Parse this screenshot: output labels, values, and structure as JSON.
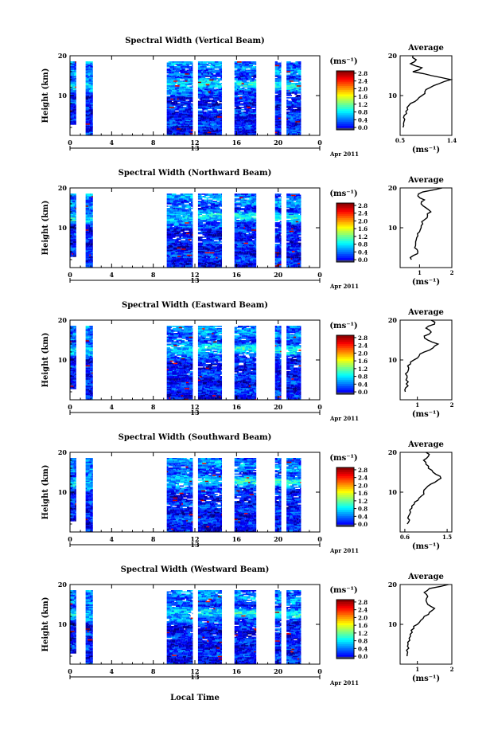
{
  "figure": {
    "panel_titles": [
      "Spectral Width (Vertical Beam)",
      "Spectral Width (Northward Beam)",
      "Spectral Width (Eastward Beam)",
      "Spectral Width (Southward Beam)",
      "Spectral Width (Westward Beam)"
    ],
    "ylabel": "Height (km)",
    "xlabel": "Local Time",
    "date_day": "13",
    "date_month": "Apr 2011",
    "colorbar_unit": "(ms⁻¹)",
    "profile_title": "Average",
    "profile_unit": "(ms⁻¹)"
  },
  "chart_data": [
    {
      "type": "heatmap",
      "title": "Spectral Width (Vertical Beam)",
      "ylabel": "Height (km)",
      "x_ticks": [
        "0",
        "4",
        "8",
        "12",
        "16",
        "20",
        "0"
      ],
      "y_ticks": [
        "10",
        "20"
      ],
      "xlim": [
        0,
        24
      ],
      "ylim": [
        0,
        20
      ],
      "colorbar": {
        "unit": "(ms⁻¹)",
        "ticks": [
          "0.0",
          "0.4",
          "0.8",
          "1.2",
          "1.6",
          "2.0",
          "2.4",
          "2.8"
        ],
        "range": [
          0,
          2.8
        ]
      },
      "data_blocks_hours": [
        [
          0.0,
          0.6
        ],
        [
          1.5,
          2.2
        ],
        [
          9.3,
          11.8
        ],
        [
          12.3,
          14.6
        ],
        [
          15.8,
          17.9
        ],
        [
          19.7,
          20.3
        ],
        [
          20.8,
          22.2
        ]
      ],
      "profile": {
        "title": "Average",
        "xlabel": "(ms⁻¹)",
        "x_ticks": [
          "0.5",
          "1.4"
        ],
        "y_ticks": [
          "10",
          "20"
        ],
        "xlim": [
          0.5,
          1.4
        ],
        "heights_km": [
          2,
          3,
          4,
          5,
          6,
          7,
          8,
          9,
          10,
          11,
          12,
          13,
          14,
          15,
          16,
          17,
          18,
          19,
          20
        ],
        "values": [
          0.55,
          0.56,
          0.58,
          0.57,
          0.6,
          0.62,
          0.68,
          0.8,
          0.88,
          0.93,
          1.02,
          1.18,
          1.38,
          1.05,
          0.72,
          0.88,
          0.68,
          0.78,
          0.72
        ]
      }
    },
    {
      "type": "heatmap",
      "title": "Spectral Width (Northward Beam)",
      "ylabel": "Height (km)",
      "x_ticks": [
        "0",
        "4",
        "8",
        "12",
        "16",
        "20",
        "0"
      ],
      "y_ticks": [
        "10",
        "20"
      ],
      "xlim": [
        0,
        24
      ],
      "ylim": [
        0,
        20
      ],
      "colorbar": {
        "unit": "(ms⁻¹)",
        "ticks": [
          "0.0",
          "0.4",
          "0.8",
          "1.2",
          "1.6",
          "2.0",
          "2.4",
          "2.8"
        ],
        "range": [
          0,
          2.8
        ]
      },
      "data_blocks_hours": [
        [
          0.0,
          0.6
        ],
        [
          1.5,
          2.2
        ],
        [
          9.3,
          11.8
        ],
        [
          12.3,
          14.6
        ],
        [
          15.8,
          17.9
        ],
        [
          19.7,
          20.3
        ],
        [
          20.8,
          22.2
        ]
      ],
      "profile": {
        "title": "Average",
        "xlabel": "(ms⁻¹)",
        "x_ticks": [
          "1",
          "2"
        ],
        "y_ticks": [
          "10",
          "20"
        ],
        "xlim": [
          0.4,
          2
        ],
        "heights_km": [
          2,
          3,
          4,
          5,
          6,
          7,
          8,
          9,
          10,
          11,
          12,
          13,
          14,
          15,
          16,
          17,
          18,
          19,
          20
        ],
        "values": [
          0.75,
          0.8,
          0.95,
          0.85,
          0.88,
          0.9,
          0.95,
          1.0,
          1.05,
          1.1,
          1.15,
          1.25,
          1.35,
          1.2,
          1.05,
          1.15,
          0.95,
          1.1,
          1.7
        ]
      }
    },
    {
      "type": "heatmap",
      "title": "Spectral Width (Eastward Beam)",
      "ylabel": "Height (km)",
      "x_ticks": [
        "0",
        "4",
        "8",
        "12",
        "16",
        "20",
        "0"
      ],
      "y_ticks": [
        "10",
        "20"
      ],
      "xlim": [
        0,
        24
      ],
      "ylim": [
        0,
        20
      ],
      "colorbar": {
        "unit": "(ms⁻¹)",
        "ticks": [
          "0.0",
          "0.4",
          "0.8",
          "1.2",
          "1.6",
          "2.0",
          "2.4",
          "2.8"
        ],
        "range": [
          0,
          2.8
        ]
      },
      "data_blocks_hours": [
        [
          0.0,
          0.6
        ],
        [
          1.5,
          2.2
        ],
        [
          9.3,
          11.8
        ],
        [
          12.3,
          14.6
        ],
        [
          15.8,
          17.9
        ],
        [
          19.7,
          20.3
        ],
        [
          20.8,
          22.2
        ]
      ],
      "profile": {
        "title": "Average",
        "xlabel": "(ms⁻¹)",
        "x_ticks": [
          "1",
          "2"
        ],
        "y_ticks": [
          "10",
          "20"
        ],
        "xlim": [
          0.5,
          2
        ],
        "heights_km": [
          2,
          3,
          4,
          5,
          6,
          7,
          8,
          9,
          10,
          11,
          12,
          13,
          14,
          15,
          16,
          17,
          18,
          19,
          20
        ],
        "values": [
          0.65,
          0.66,
          0.68,
          0.67,
          0.7,
          0.72,
          0.75,
          0.8,
          0.9,
          1.05,
          1.2,
          1.45,
          1.6,
          1.3,
          1.2,
          1.4,
          1.25,
          1.5,
          1.4
        ]
      }
    },
    {
      "type": "heatmap",
      "title": "Spectral Width (Southward Beam)",
      "ylabel": "Height (km)",
      "x_ticks": [
        "0",
        "4",
        "8",
        "12",
        "16",
        "20",
        "0"
      ],
      "y_ticks": [
        "10",
        "20"
      ],
      "xlim": [
        0,
        24
      ],
      "ylim": [
        0,
        20
      ],
      "colorbar": {
        "unit": "(ms⁻¹)",
        "ticks": [
          "0.0",
          "0.4",
          "0.8",
          "1.2",
          "1.6",
          "2.0",
          "2.4",
          "2.8"
        ],
        "range": [
          0,
          2.8
        ]
      },
      "data_blocks_hours": [
        [
          0.0,
          0.6
        ],
        [
          1.5,
          2.2
        ],
        [
          9.3,
          11.8
        ],
        [
          12.3,
          14.6
        ],
        [
          15.8,
          17.9
        ],
        [
          19.7,
          20.3
        ],
        [
          20.8,
          22.2
        ]
      ],
      "profile": {
        "title": "Average",
        "xlabel": "(ms⁻¹)",
        "x_ticks": [
          "0.6",
          "1.5"
        ],
        "y_ticks": [
          "10",
          "20"
        ],
        "xlim": [
          0.5,
          1.6
        ],
        "heights_km": [
          2,
          3,
          4,
          5,
          6,
          7,
          8,
          9,
          10,
          11,
          12,
          13,
          14,
          15,
          16,
          17,
          18,
          19,
          20
        ],
        "values": [
          0.65,
          0.7,
          0.68,
          0.72,
          0.75,
          0.8,
          0.88,
          0.95,
          1.0,
          1.05,
          1.15,
          1.3,
          1.35,
          1.2,
          1.1,
          1.05,
          1.0,
          1.1,
          1.05
        ]
      }
    },
    {
      "type": "heatmap",
      "title": "Spectral Width (Westward Beam)",
      "ylabel": "Height (km)",
      "x_ticks": [
        "0",
        "4",
        "8",
        "12",
        "16",
        "20",
        "0"
      ],
      "y_ticks": [
        "10",
        "20"
      ],
      "xlim": [
        0,
        24
      ],
      "ylim": [
        0,
        20
      ],
      "colorbar": {
        "unit": "(ms⁻¹)",
        "ticks": [
          "0.0",
          "0.4",
          "0.8",
          "1.2",
          "1.6",
          "2.0",
          "2.4",
          "2.8"
        ],
        "range": [
          0,
          2.8
        ]
      },
      "data_blocks_hours": [
        [
          0.0,
          0.6
        ],
        [
          1.5,
          2.2
        ],
        [
          9.3,
          11.8
        ],
        [
          12.3,
          14.6
        ],
        [
          15.8,
          17.9
        ],
        [
          19.7,
          20.3
        ],
        [
          20.8,
          22.2
        ]
      ],
      "profile": {
        "title": "Average",
        "xlabel": "(ms⁻¹)",
        "x_ticks": [
          "1",
          "2"
        ],
        "y_ticks": [
          "10",
          "20"
        ],
        "xlim": [
          0.5,
          2
        ],
        "heights_km": [
          2,
          3,
          4,
          5,
          6,
          7,
          8,
          9,
          10,
          11,
          12,
          13,
          14,
          15,
          16,
          17,
          18,
          19,
          20
        ],
        "values": [
          0.7,
          0.72,
          0.75,
          0.73,
          0.78,
          0.8,
          0.85,
          0.9,
          1.0,
          1.1,
          1.2,
          1.35,
          1.5,
          1.3,
          1.25,
          1.3,
          1.2,
          1.35,
          1.9
        ]
      }
    }
  ]
}
